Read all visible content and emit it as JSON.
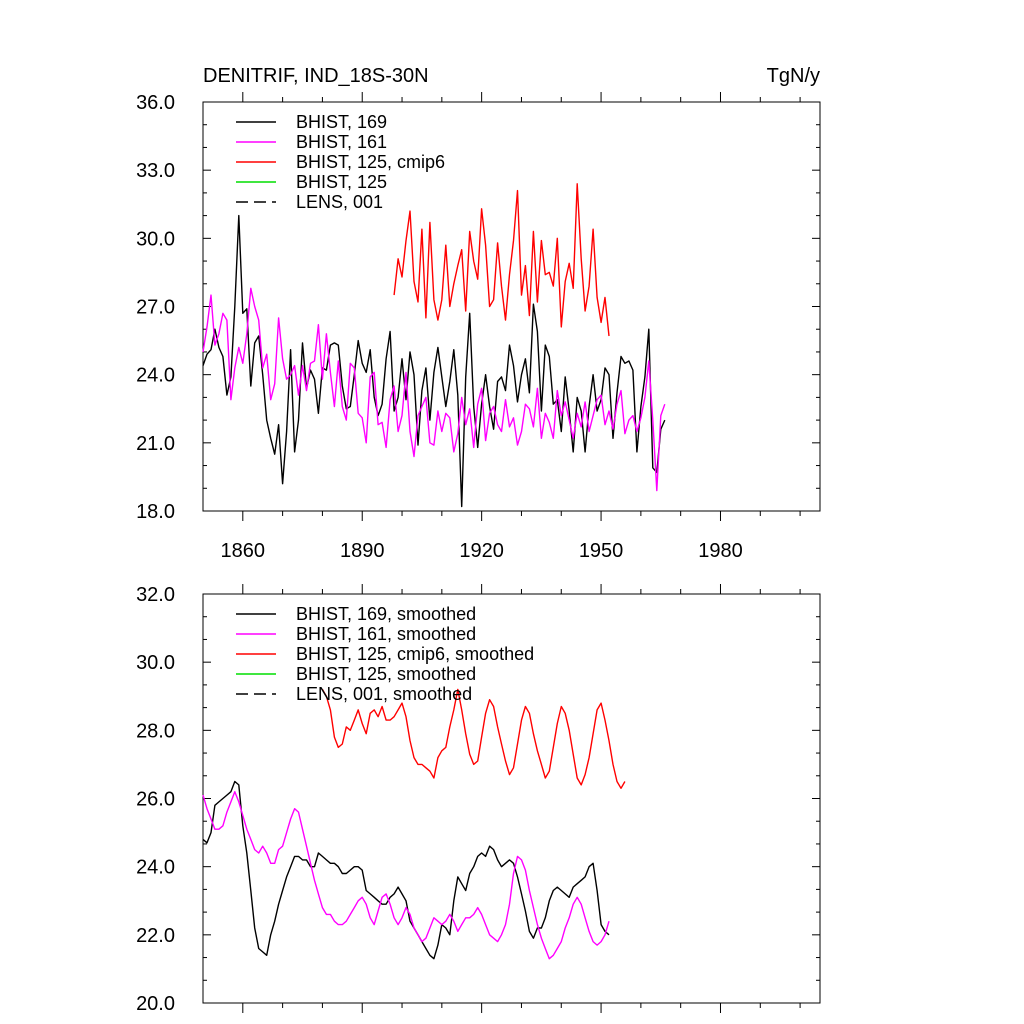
{
  "chart_data": [
    {
      "type": "line",
      "title": "DENITRIF, IND_18S-30N",
      "units": "TgN/y",
      "xlim": [
        1850,
        2005
      ],
      "ylim": [
        18,
        36
      ],
      "xticks": [
        1860,
        1890,
        1920,
        1950,
        1980
      ],
      "xtick_labels": [
        "1860",
        "1890",
        "1920",
        "1950",
        "1980"
      ],
      "yticks": [
        18,
        21,
        24,
        27,
        30,
        33,
        36
      ],
      "ytick_labels": [
        "18.0",
        "21.0",
        "24.0",
        "27.0",
        "30.0",
        "33.0",
        "36.0"
      ],
      "legend_position": "top-left",
      "legend": [
        {
          "label": "BHIST, 169",
          "color": "#000000",
          "dash": "solid"
        },
        {
          "label": "BHIST, 161",
          "color": "#ff00ff",
          "dash": "solid"
        },
        {
          "label": "BHIST, 125, cmip6",
          "color": "#ff0000",
          "dash": "solid"
        },
        {
          "label": "BHIST, 125",
          "color": "#00dd00",
          "dash": "solid"
        },
        {
          "label": "LENS, 001",
          "color": "#000000",
          "dash": "dashed"
        }
      ],
      "series": [
        {
          "name": "BHIST, 169",
          "color": "#000000",
          "x_start": 1850,
          "x_step": 1,
          "values": [
            24.4,
            24.9,
            25.1,
            26.0,
            25.2,
            24.8,
            23.1,
            23.9,
            27.0,
            31.0,
            26.7,
            26.9,
            23.5,
            25.4,
            25.7,
            24.0,
            22.0,
            21.2,
            20.5,
            21.8,
            19.2,
            21.5,
            25.1,
            20.6,
            22.0,
            25.4,
            23.4,
            24.2,
            23.8,
            22.3,
            24.3,
            24.2,
            25.3,
            25.4,
            25.3,
            23.5,
            22.5,
            22.6,
            24.0,
            25.5,
            24.5,
            24.1,
            25.1,
            23.0,
            22.2,
            22.7,
            24.7,
            25.9,
            22.4,
            23.0,
            24.7,
            22.9,
            25.0,
            24.0,
            20.9,
            23.3,
            24.3,
            22.0,
            24.1,
            25.2,
            23.9,
            22.6,
            23.7,
            25.1,
            23.1,
            18.2,
            23.9,
            26.7,
            22.6,
            20.8,
            22.7,
            24.0,
            22.6,
            21.6,
            23.7,
            23.9,
            23.3,
            25.3,
            24.4,
            22.8,
            24.0,
            24.7,
            23.2,
            27.1,
            25.9,
            22.4,
            25.3,
            24.8,
            22.7,
            22.9,
            21.5,
            23.9,
            22.4,
            20.6,
            23.0,
            22.4,
            20.6,
            22.6,
            24.0,
            22.4,
            22.9,
            24.3,
            24.0,
            21.2,
            23.2,
            24.8,
            24.5,
            24.6,
            24.2,
            20.6,
            22.6,
            23.9,
            26.0,
            19.9,
            19.7,
            21.6,
            22.0
          ]
        },
        {
          "name": "BHIST, 161",
          "color": "#ff00ff",
          "x_start": 1850,
          "x_step": 1,
          "values": [
            25.0,
            26.1,
            27.5,
            25.3,
            25.8,
            26.7,
            26.4,
            22.9,
            24.3,
            25.2,
            24.5,
            25.8,
            27.8,
            27.0,
            26.4,
            24.3,
            24.9,
            22.9,
            23.6,
            26.5,
            24.7,
            23.8,
            24.0,
            24.4,
            23.1,
            24.4,
            23.3,
            24.5,
            24.6,
            26.2,
            23.8,
            25.8,
            24.1,
            22.6,
            24.6,
            22.6,
            22.0,
            24.5,
            24.3,
            22.3,
            22.1,
            21.0,
            23.9,
            24.1,
            21.8,
            21.9,
            20.8,
            22.9,
            23.5,
            21.5,
            22.2,
            24.1,
            21.5,
            20.4,
            22.2,
            22.6,
            23.0,
            21.0,
            20.9,
            22.4,
            21.5,
            22.3,
            22.1,
            20.6,
            21.4,
            23.0,
            21.8,
            22.5,
            20.8,
            22.7,
            23.4,
            21.1,
            22.3,
            22.6,
            21.8,
            21.5,
            22.9,
            21.7,
            22.1,
            20.9,
            21.5,
            22.7,
            22.5,
            21.7,
            23.4,
            21.2,
            22.3,
            21.9,
            21.2,
            23.3,
            22.2,
            22.8,
            22.0,
            21.2,
            22.3,
            21.7,
            22.8,
            21.5,
            22.2,
            22.9,
            23.1,
            21.8,
            22.4,
            21.6,
            22.7,
            23.3,
            21.4,
            22.0,
            22.2,
            21.5,
            22.1,
            23.0,
            24.6,
            22.0,
            18.9,
            22.2,
            22.7
          ]
        },
        {
          "name": "BHIST, 125, cmip6",
          "color": "#ff0000",
          "x_start": 1898,
          "x_step": 1,
          "values": [
            27.5,
            29.1,
            28.3,
            29.9,
            31.2,
            28.1,
            27.2,
            30.4,
            26.5,
            30.7,
            27.3,
            26.4,
            27.3,
            29.7,
            27.0,
            28.0,
            28.8,
            29.5,
            26.8,
            30.3,
            29.0,
            28.2,
            31.3,
            29.7,
            27.0,
            27.3,
            29.8,
            27.9,
            26.4,
            28.4,
            29.9,
            32.1,
            27.5,
            28.8,
            26.6,
            30.3,
            27.2,
            29.9,
            28.4,
            28.5,
            27.9,
            30.0,
            26.1,
            28.1,
            28.9,
            27.8,
            32.4,
            29.1,
            26.8,
            27.9,
            30.4,
            27.4,
            26.3,
            27.4,
            25.7
          ]
        }
      ]
    },
    {
      "type": "line",
      "xlim": [
        1850,
        2005
      ],
      "ylim": [
        20,
        32
      ],
      "xticks": [
        1860,
        1890,
        1920,
        1950,
        1980
      ],
      "yticks": [
        20,
        22,
        24,
        26,
        28,
        30,
        32
      ],
      "ytick_labels": [
        "20.0",
        "22.0",
        "24.0",
        "26.0",
        "28.0",
        "30.0",
        "32.0"
      ],
      "legend_position": "top-left",
      "legend": [
        {
          "label": "BHIST, 169, smoothed",
          "color": "#000000",
          "dash": "solid"
        },
        {
          "label": "BHIST, 161, smoothed",
          "color": "#ff00ff",
          "dash": "solid"
        },
        {
          "label": "BHIST, 125, cmip6, smoothed",
          "color": "#ff0000",
          "dash": "solid"
        },
        {
          "label": "BHIST, 125, smoothed",
          "color": "#00dd00",
          "dash": "solid"
        },
        {
          "label": "LENS, 001, smoothed",
          "color": "#000000",
          "dash": "dashed"
        }
      ],
      "series": [
        {
          "name": "BHIST, 169, smoothed",
          "color": "#000000",
          "x_start": 1850,
          "x_step": 1,
          "values": [
            24.8,
            24.7,
            25.0,
            25.8,
            25.9,
            26.0,
            26.1,
            26.2,
            26.5,
            26.4,
            25.2,
            24.4,
            23.3,
            22.2,
            21.6,
            21.5,
            21.4,
            22.0,
            22.4,
            22.9,
            23.3,
            23.7,
            24.0,
            24.3,
            24.3,
            24.2,
            24.2,
            24.0,
            24.0,
            24.4,
            24.3,
            24.2,
            24.1,
            24.1,
            24.0,
            23.8,
            23.8,
            23.9,
            24.0,
            24.0,
            23.9,
            23.3,
            23.2,
            23.1,
            23.0,
            22.9,
            22.9,
            23.1,
            23.2,
            23.4,
            23.2,
            23.0,
            22.4,
            22.2,
            22.0,
            21.8,
            21.6,
            21.4,
            21.3,
            21.7,
            22.3,
            22.2,
            22.0,
            23.0,
            23.7,
            23.5,
            23.3,
            23.8,
            24.0,
            24.3,
            24.4,
            24.3,
            24.6,
            24.5,
            24.2,
            24.0,
            24.1,
            24.2,
            24.1,
            23.7,
            23.2,
            22.7,
            22.1,
            21.9,
            22.2,
            22.2,
            22.5,
            23.0,
            23.3,
            23.4,
            23.3,
            23.2,
            23.1,
            23.4,
            23.5,
            23.6,
            23.7,
            24.0,
            24.1,
            23.3,
            22.3,
            22.1,
            22.0
          ]
        },
        {
          "name": "BHIST, 161, smoothed",
          "color": "#ff00ff",
          "x_start": 1850,
          "x_step": 1,
          "values": [
            26.1,
            25.7,
            25.4,
            25.1,
            25.1,
            25.2,
            25.6,
            25.9,
            26.2,
            25.9,
            25.5,
            25.1,
            24.8,
            24.5,
            24.4,
            24.6,
            24.4,
            24.1,
            24.1,
            24.5,
            24.6,
            25.0,
            25.4,
            25.7,
            25.6,
            25.1,
            24.6,
            24.1,
            23.6,
            23.2,
            22.8,
            22.6,
            22.6,
            22.4,
            22.3,
            22.3,
            22.4,
            22.6,
            22.8,
            23.0,
            23.1,
            22.9,
            22.5,
            22.3,
            22.7,
            23.1,
            23.2,
            22.9,
            22.5,
            22.3,
            22.5,
            22.8,
            22.6,
            22.2,
            22.0,
            21.8,
            21.9,
            22.2,
            22.5,
            22.4,
            22.3,
            22.4,
            22.6,
            22.4,
            22.1,
            22.3,
            22.5,
            22.5,
            22.6,
            22.8,
            22.6,
            22.3,
            22.0,
            21.9,
            21.8,
            22.0,
            22.3,
            22.9,
            23.8,
            24.3,
            24.2,
            23.9,
            23.3,
            22.8,
            22.3,
            21.9,
            21.6,
            21.3,
            21.4,
            21.6,
            21.8,
            22.2,
            22.5,
            22.9,
            23.1,
            22.9,
            22.5,
            22.1,
            21.8,
            21.7,
            21.8,
            22.0,
            22.4
          ]
        },
        {
          "name": "BHIST, 125, cmip6, smoothed",
          "color": "#ff0000",
          "x_start": 1880,
          "x_step": 1,
          "values": [
            29.2,
            29.0,
            28.6,
            27.8,
            27.5,
            27.6,
            28.1,
            28.0,
            28.3,
            28.6,
            28.2,
            27.9,
            28.5,
            28.6,
            28.4,
            28.7,
            28.3,
            28.3,
            28.4,
            28.6,
            28.8,
            28.4,
            27.7,
            27.2,
            27.0,
            27.0,
            26.9,
            26.8,
            26.6,
            27.2,
            27.4,
            27.5,
            28.1,
            28.6,
            29.2,
            28.6,
            27.9,
            27.3,
            27.0,
            27.1,
            27.8,
            28.5,
            28.9,
            28.7,
            28.1,
            27.6,
            27.1,
            26.7,
            26.9,
            27.6,
            28.3,
            28.7,
            28.5,
            27.9,
            27.4,
            27.0,
            26.6,
            26.8,
            27.5,
            28.2,
            28.7,
            28.5,
            28.0,
            27.3,
            26.6,
            26.4,
            26.7,
            27.2,
            27.9,
            28.6,
            28.8,
            28.3,
            27.7,
            27.0,
            26.5,
            26.3,
            26.5
          ]
        }
      ]
    }
  ]
}
